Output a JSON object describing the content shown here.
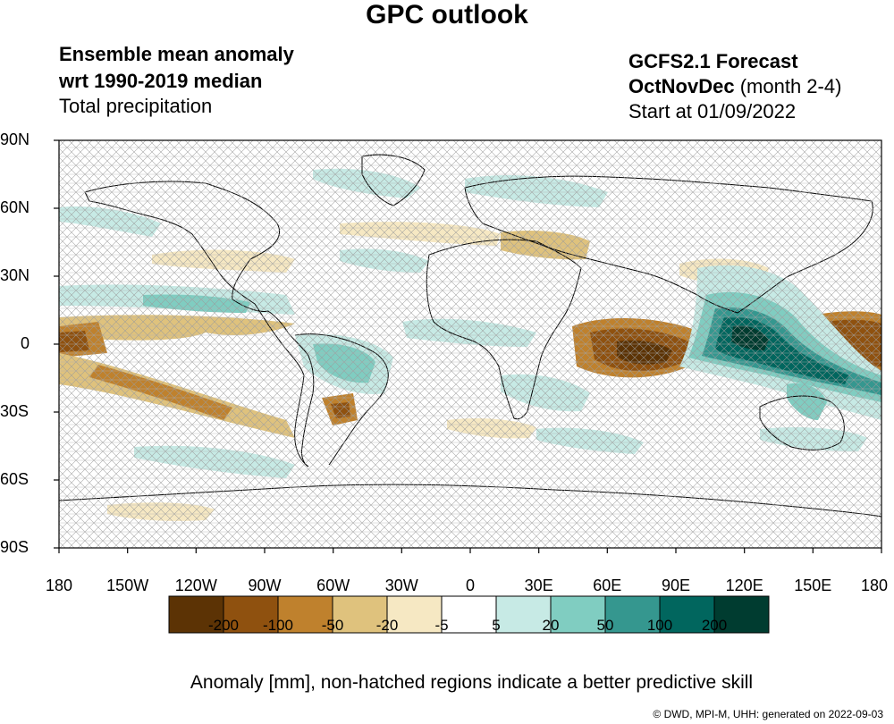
{
  "header": {
    "title": "GPC outlook",
    "left_line1": "Ensemble mean anomaly",
    "left_line2": "wrt 1990-2019 median",
    "left_line3": "Total precipitation",
    "right_line1": "GCFS2.1 Forecast",
    "right_line2_bold": "OctNovDec",
    "right_line2_rest": " (month 2-4)",
    "right_line3": "Start at 01/09/2022"
  },
  "axes": {
    "lat_labels": [
      "90N",
      "60N",
      "30N",
      "0",
      "30S",
      "60S",
      "90S"
    ],
    "lon_labels": [
      "180",
      "150W",
      "120W",
      "90W",
      "60W",
      "30W",
      "0",
      "30E",
      "60E",
      "90E",
      "120E",
      "150E",
      "180"
    ]
  },
  "colorbar": {
    "colors": [
      "#5c3305",
      "#8f510f",
      "#bf812d",
      "#dfc27d",
      "#f6e8c3",
      "#ffffff",
      "#c7eae5",
      "#80cdc1",
      "#35978f",
      "#01665e",
      "#003c30"
    ],
    "tick_labels": [
      "-200",
      "-100",
      "-50",
      "-20",
      "-5",
      "5",
      "20",
      "50",
      "100",
      "200"
    ],
    "title": "Anomaly [mm], non-hatched regions indicate a better predictive skill"
  },
  "credit": "© DWD, MPI-M, UHH: generated on 2022-09-03"
}
